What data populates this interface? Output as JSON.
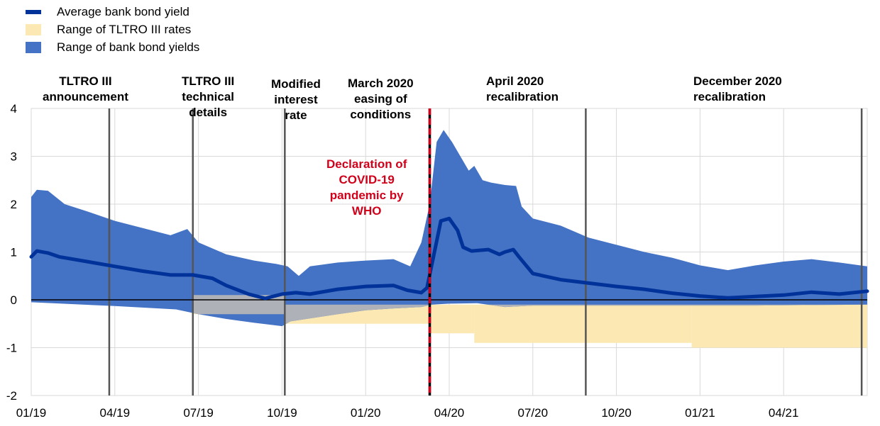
{
  "legend": {
    "avg": {
      "label": "Average bank bond yield",
      "color": "#003299"
    },
    "tltro": {
      "label": "Range of TLTRO III rates",
      "color": "#fbe8b2"
    },
    "bonds": {
      "label": "Range of bank bond yields",
      "color": "#4472c4"
    }
  },
  "annotations": {
    "tltro_announcement": "TLTRO III\nannouncement",
    "tltro_technical": "TLTRO III\ntechnical\ndetails",
    "modified_rate": "Modified\ninterest\nrate",
    "march_easing": "March 2020\neasing of\nconditions",
    "april_recal": "April 2020\nrecalibration",
    "december_recal": "December 2020\nrecalibration",
    "covid": "Declaration of\nCOVID-19\npandemic by\nWHO"
  },
  "chart_data": {
    "type": "area",
    "x_tick_labels": [
      "01/19",
      "04/19",
      "07/19",
      "10/19",
      "01/20",
      "04/20",
      "07/20",
      "10/20",
      "01/21",
      "04/21"
    ],
    "y_tick_labels": [
      "4",
      "3",
      "2",
      "1",
      "0",
      "-1",
      "-2"
    ],
    "ylim": [
      -2,
      4
    ],
    "xlim_months": [
      0,
      30
    ],
    "grid": true,
    "legend_position": "top-left",
    "event_lines_month": [
      2.8,
      5.8,
      9.1,
      19.9,
      29.8
    ],
    "covid_line_month": 14.3,
    "series": [
      {
        "name": "Average bank bond yield",
        "points": [
          [
            0,
            0.9
          ],
          [
            0.2,
            1.02
          ],
          [
            0.6,
            0.98
          ],
          [
            1,
            0.9
          ],
          [
            2,
            0.8
          ],
          [
            3,
            0.7
          ],
          [
            4,
            0.6
          ],
          [
            5,
            0.52
          ],
          [
            5.8,
            0.52
          ],
          [
            6.5,
            0.45
          ],
          [
            7,
            0.3
          ],
          [
            7.8,
            0.12
          ],
          [
            8.4,
            0.03
          ],
          [
            9,
            0.12
          ],
          [
            9.5,
            0.15
          ],
          [
            10,
            0.12
          ],
          [
            11,
            0.22
          ],
          [
            12,
            0.28
          ],
          [
            13,
            0.3
          ],
          [
            13.5,
            0.2
          ],
          [
            14,
            0.15
          ],
          [
            14.2,
            0.25
          ],
          [
            14.4,
            0.8
          ],
          [
            14.7,
            1.65
          ],
          [
            15,
            1.7
          ],
          [
            15.3,
            1.45
          ],
          [
            15.5,
            1.1
          ],
          [
            15.8,
            1.02
          ],
          [
            16.4,
            1.05
          ],
          [
            16.8,
            0.95
          ],
          [
            17,
            1.0
          ],
          [
            17.3,
            1.05
          ],
          [
            17.5,
            0.9
          ],
          [
            18,
            0.55
          ],
          [
            19,
            0.42
          ],
          [
            20,
            0.35
          ],
          [
            21,
            0.28
          ],
          [
            22,
            0.22
          ],
          [
            23,
            0.14
          ],
          [
            24,
            0.08
          ],
          [
            25,
            0.04
          ],
          [
            26,
            0.07
          ],
          [
            27,
            0.1
          ],
          [
            28,
            0.16
          ],
          [
            29,
            0.12
          ],
          [
            30,
            0.18
          ]
        ]
      },
      {
        "name": "Range of bank bond yields",
        "upper": [
          [
            0,
            2.15
          ],
          [
            0.2,
            2.3
          ],
          [
            0.6,
            2.28
          ],
          [
            1.2,
            2.0
          ],
          [
            2,
            1.85
          ],
          [
            3,
            1.65
          ],
          [
            4,
            1.5
          ],
          [
            5,
            1.35
          ],
          [
            5.6,
            1.48
          ],
          [
            6,
            1.2
          ],
          [
            7,
            0.95
          ],
          [
            8,
            0.82
          ],
          [
            8.8,
            0.75
          ],
          [
            9.2,
            0.7
          ],
          [
            9.6,
            0.5
          ],
          [
            10,
            0.7
          ],
          [
            11,
            0.78
          ],
          [
            12,
            0.82
          ],
          [
            13,
            0.85
          ],
          [
            13.6,
            0.7
          ],
          [
            14.0,
            1.2
          ],
          [
            14.3,
            2.0
          ],
          [
            14.55,
            3.3
          ],
          [
            14.8,
            3.55
          ],
          [
            15.1,
            3.3
          ],
          [
            15.4,
            3.0
          ],
          [
            15.7,
            2.7
          ],
          [
            15.9,
            2.8
          ],
          [
            16.2,
            2.5
          ],
          [
            16.5,
            2.45
          ],
          [
            17,
            2.4
          ],
          [
            17.4,
            2.38
          ],
          [
            17.6,
            1.95
          ],
          [
            18,
            1.7
          ],
          [
            19,
            1.55
          ],
          [
            20,
            1.3
          ],
          [
            21,
            1.15
          ],
          [
            22,
            1.0
          ],
          [
            23,
            0.88
          ],
          [
            24,
            0.72
          ],
          [
            25,
            0.62
          ],
          [
            26,
            0.72
          ],
          [
            27,
            0.8
          ],
          [
            28,
            0.85
          ],
          [
            29,
            0.78
          ],
          [
            30,
            0.7
          ]
        ],
        "lower": [
          [
            0,
            -0.05
          ],
          [
            3,
            -0.13
          ],
          [
            5.2,
            -0.2
          ],
          [
            6,
            -0.3
          ],
          [
            7,
            -0.4
          ],
          [
            8,
            -0.48
          ],
          [
            9,
            -0.55
          ],
          [
            9.3,
            -0.45
          ],
          [
            11,
            -0.3
          ],
          [
            12,
            -0.22
          ],
          [
            13,
            -0.18
          ],
          [
            14,
            -0.15
          ],
          [
            14.4,
            -0.1
          ],
          [
            15,
            -0.08
          ],
          [
            16,
            -0.07
          ],
          [
            17,
            -0.15
          ],
          [
            18,
            -0.12
          ],
          [
            20,
            -0.12
          ],
          [
            23,
            -0.12
          ],
          [
            26,
            -0.12
          ],
          [
            30,
            -0.1
          ]
        ]
      },
      {
        "name": "Range of TLTRO III rates",
        "segments": [
          {
            "from": 5.8,
            "to": 9.1,
            "low": -0.3,
            "high": 0.1
          },
          {
            "from": 9.1,
            "to": 14.3,
            "low": -0.5,
            "high": -0.1
          },
          {
            "from": 14.3,
            "to": 15.9,
            "low": -0.7,
            "high": -0.1
          },
          {
            "from": 15.9,
            "to": 23.7,
            "low": -0.9,
            "high": -0.1
          },
          {
            "from": 23.7,
            "to": 30,
            "low": -1.0,
            "high": -0.1
          }
        ]
      }
    ]
  }
}
